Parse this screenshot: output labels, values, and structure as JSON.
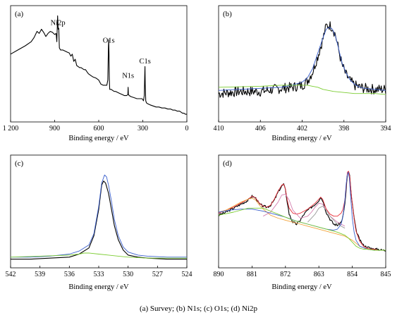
{
  "caption": "(a) Survey; (b) N1s; (c) O1s; (d) Ni2p",
  "colors": {
    "measured": "#000000",
    "envelope": "#3a5fcd",
    "background": "#7ccd32",
    "fit_red": "#e8303a",
    "fit_orange": "#f2a33a",
    "fit_pink": "#d47fb0",
    "fit_gray": "#9a9a9a"
  },
  "chart_data": [
    {
      "id": "a",
      "type": "line",
      "panel_label": "(a)",
      "xlabel": "Binding energy / eV",
      "ylabel": "",
      "xlim": [
        1200,
        0
      ],
      "ylim": [
        0,
        100
      ],
      "xticks": [
        1200,
        900,
        600,
        300,
        0
      ],
      "xtick_labels": [
        "1 200",
        "900",
        "600",
        "300",
        "0"
      ],
      "annotations": [
        {
          "text": "Ni2p",
          "x": 878,
          "y": 88
        },
        {
          "text": "O1s",
          "x": 532,
          "y": 71
        },
        {
          "text": "N1s",
          "x": 400,
          "y": 37
        },
        {
          "text": "C1s",
          "x": 285,
          "y": 51
        }
      ],
      "series": [
        {
          "color_key": "measured",
          "x": [
            1200,
            1150,
            1100,
            1060,
            1040,
            1020,
            1005,
            990,
            975,
            960,
            945,
            930,
            915,
            900,
            890,
            885,
            880,
            876,
            872,
            868,
            860,
            845,
            830,
            815,
            800,
            790,
            780,
            770,
            760,
            750,
            740,
            730,
            720,
            710,
            700,
            690,
            680,
            670,
            660,
            650,
            640,
            620,
            600,
            585,
            570,
            555,
            545,
            538,
            534,
            532,
            530,
            528,
            525,
            515,
            505,
            495,
            485,
            470,
            455,
            440,
            425,
            410,
            402,
            400,
            398,
            392,
            380,
            360,
            340,
            320,
            305,
            295,
            290,
            287,
            285,
            283,
            280,
            275,
            265,
            250,
            230,
            210,
            190,
            170,
            150,
            130,
            110,
            95,
            80,
            65,
            50,
            40,
            30,
            20,
            10,
            0
          ],
          "y": [
            60,
            64,
            68,
            72,
            76,
            82,
            80,
            84,
            81,
            77,
            80,
            82,
            81,
            79,
            80,
            72,
            97,
            84,
            85,
            66,
            64,
            64,
            63,
            62,
            61,
            58,
            60,
            53,
            55,
            49,
            48,
            47,
            47,
            46,
            45,
            45,
            43,
            41,
            40,
            39,
            38,
            37,
            35,
            31,
            30,
            30,
            30,
            35,
            68,
            74,
            60,
            37,
            26,
            26,
            25,
            24,
            24,
            23,
            22,
            21,
            20,
            20,
            21,
            28,
            21,
            20,
            19,
            18,
            17,
            17,
            17,
            15,
            20,
            38,
            48,
            30,
            15,
            13,
            12,
            11,
            10,
            9,
            9,
            8,
            8,
            7,
            7,
            6,
            6,
            5,
            5,
            4,
            3,
            3,
            2,
            2
          ]
        }
      ]
    },
    {
      "id": "b",
      "type": "line",
      "panel_label": "(b)",
      "xlabel": "Binding energy / eV",
      "ylabel": "",
      "xlim": [
        410,
        394
      ],
      "ylim": [
        0,
        100
      ],
      "xticks": [
        410,
        406,
        402,
        398,
        394
      ],
      "xtick_labels": [
        "410",
        "406",
        "402",
        "398",
        "394"
      ],
      "series": [
        {
          "color_key": "measured",
          "noise_seed": 7,
          "noise_amp": 5,
          "x": [
            410,
            408,
            406,
            404,
            403,
            402,
            401.5,
            401,
            400.5,
            400,
            399.7,
            399.4,
            399.1,
            398.8,
            398.5,
            398.2,
            397.8,
            397.4,
            397,
            396.5,
            396,
            395,
            394
          ],
          "y": [
            22,
            24,
            24,
            27,
            28,
            30,
            34,
            43,
            58,
            75,
            87,
            88,
            86,
            78,
            64,
            50,
            40,
            34,
            30,
            28,
            27,
            26,
            26
          ]
        },
        {
          "color_key": "envelope",
          "x": [
            410,
            408,
            406,
            404,
            403,
            402,
            401.5,
            401,
            400.5,
            400,
            399.7,
            399.4,
            399.1,
            398.8,
            398.5,
            398.2,
            397.8,
            397.4,
            397,
            396.5,
            396,
            395,
            394
          ],
          "y": [
            25,
            26,
            27,
            28,
            30,
            33,
            37,
            46,
            61,
            76,
            84,
            86,
            84,
            77,
            65,
            52,
            42,
            35,
            31,
            28,
            27,
            26,
            25
          ]
        },
        {
          "color_key": "background",
          "x": [
            410,
            406,
            404,
            402.5,
            402,
            401.5,
            401,
            400.5,
            400,
            399,
            398,
            397,
            396,
            395,
            394
          ],
          "y": [
            28,
            29,
            30,
            30,
            30,
            30,
            29,
            28,
            26,
            24,
            23,
            22,
            22,
            22,
            21
          ]
        }
      ]
    },
    {
      "id": "c",
      "type": "line",
      "panel_label": "(c)",
      "xlabel": "Binding energy / eV",
      "ylabel": "",
      "xlim": [
        542,
        524
      ],
      "ylim": [
        0,
        100
      ],
      "xticks": [
        542,
        539,
        536,
        533,
        530,
        527,
        524
      ],
      "xtick_labels": [
        "542",
        "539",
        "536",
        "533",
        "530",
        "527",
        "524"
      ],
      "series": [
        {
          "color_key": "measured",
          "x": [
            542,
            540,
            538,
            536,
            535,
            534,
            533.5,
            533,
            532.7,
            532.5,
            532.3,
            532,
            531.7,
            531.4,
            531,
            530.5,
            530,
            529,
            528,
            526,
            524
          ],
          "y": [
            3,
            3,
            4,
            5,
            8,
            14,
            26,
            52,
            76,
            80,
            78,
            68,
            52,
            36,
            22,
            12,
            7,
            5,
            4,
            3,
            3
          ]
        },
        {
          "color_key": "envelope",
          "x": [
            542,
            540,
            538,
            536,
            535,
            534,
            533.5,
            533,
            532.7,
            532.4,
            532.2,
            532,
            531.7,
            531.4,
            531,
            530.5,
            530,
            529,
            528,
            526,
            524
          ],
          "y": [
            5,
            5,
            6,
            8,
            11,
            17,
            28,
            55,
            78,
            86,
            84,
            76,
            60,
            42,
            26,
            15,
            10,
            7,
            6,
            5,
            5
          ]
        },
        {
          "color_key": "background",
          "x": [
            542,
            539,
            536,
            535,
            534.5,
            534,
            533,
            532,
            531,
            530,
            528,
            526,
            524
          ],
          "y": [
            5,
            6,
            7,
            8,
            9,
            9,
            8,
            7,
            6,
            5,
            4,
            4,
            4
          ]
        }
      ]
    },
    {
      "id": "d",
      "type": "line",
      "panel_label": "(d)",
      "xlabel": "Binding energy / eV",
      "ylabel": "",
      "xlim": [
        890,
        845
      ],
      "ylim": [
        0,
        100
      ],
      "xticks": [
        890,
        881,
        872,
        863,
        854,
        845
      ],
      "xtick_labels": [
        "890",
        "881",
        "872",
        "863",
        "854",
        "845"
      ],
      "series": [
        {
          "color_key": "measured",
          "noise_seed": 3,
          "noise_amp": 1.2,
          "x": [
            890,
            888,
            886,
            884,
            882,
            881,
            880,
            879,
            878,
            877,
            876,
            875,
            874,
            873,
            872.5,
            872,
            871.5,
            871,
            870,
            869,
            868,
            867,
            866,
            865,
            864,
            863,
            862.5,
            862,
            861.5,
            861,
            860,
            859,
            858,
            857,
            856.5,
            856,
            855.7,
            855.5,
            855.3,
            855,
            854.7,
            854.4,
            854,
            853.5,
            853,
            852,
            851,
            850,
            849,
            848,
            847,
            846,
            845
          ],
          "y": [
            47,
            50,
            54,
            58,
            62,
            66,
            64,
            58,
            56,
            55,
            57,
            62,
            70,
            76,
            78,
            72,
            60,
            48,
            40,
            38,
            42,
            48,
            52,
            55,
            58,
            62,
            65,
            62,
            56,
            50,
            43,
            38,
            37,
            40,
            46,
            58,
            70,
            80,
            88,
            90,
            86,
            72,
            58,
            44,
            32,
            22,
            17,
            15,
            14,
            13,
            13,
            12,
            12
          ]
        },
        {
          "color_key": "fit_red",
          "x": [
            890,
            888,
            886,
            884,
            882,
            881,
            880,
            879,
            878,
            877,
            876,
            875,
            874,
            873,
            872.5,
            872,
            871.5,
            871,
            870,
            869,
            868,
            867,
            866,
            865,
            864,
            863,
            862.5,
            862,
            861.5,
            861,
            860,
            859,
            858,
            857,
            856.5,
            856,
            855.7,
            855.5,
            855.3,
            855,
            854.7,
            854.4,
            854,
            853.5,
            853,
            852,
            851,
            850,
            849,
            848,
            847,
            846,
            845
          ],
          "y": [
            49,
            52,
            55,
            59,
            63,
            66,
            64,
            59,
            56,
            55,
            57,
            63,
            71,
            77,
            78,
            73,
            62,
            54,
            49,
            48,
            49,
            51,
            53,
            56,
            59,
            63,
            65,
            63,
            58,
            53,
            48,
            46,
            46,
            49,
            53,
            62,
            73,
            83,
            90,
            91,
            86,
            73,
            58,
            43,
            31,
            21,
            16,
            14,
            13,
            13,
            12,
            12,
            12
          ]
        },
        {
          "color_key": "fit_orange",
          "x": [
            890,
            888,
            886,
            884,
            882,
            881,
            880,
            879,
            878,
            877,
            876,
            874,
            872,
            870,
            868,
            866,
            864,
            862,
            860,
            858,
            856,
            854,
            852,
            850,
            848,
            846,
            845
          ],
          "y": [
            50,
            52,
            56,
            60,
            63,
            64,
            62,
            57,
            53,
            50,
            47,
            44,
            42,
            40,
            38,
            36,
            34,
            32,
            30,
            28,
            26,
            22,
            16,
            13,
            12,
            12,
            12
          ]
        },
        {
          "color_key": "fit_pink",
          "x": [
            878,
            876,
            874,
            873,
            872,
            871,
            870,
            868,
            866,
            865,
            864,
            863,
            862,
            861,
            860,
            858,
            856
          ],
          "y": [
            46,
            50,
            60,
            67,
            68,
            62,
            52,
            44,
            46,
            50,
            55,
            59,
            58,
            52,
            46,
            40,
            36
          ]
        },
        {
          "color_key": "fit_gray",
          "x": [
            866,
            864,
            863,
            862,
            861,
            860,
            858,
            856
          ],
          "y": [
            40,
            48,
            54,
            56,
            52,
            46,
            38,
            34
          ]
        },
        {
          "color_key": "envelope",
          "x": [
            890,
            887,
            884,
            881,
            878,
            875,
            872,
            869,
            866,
            863,
            861,
            859,
            858,
            857,
            856.5,
            856,
            855.7,
            855.4,
            855.1,
            854.8,
            854.5,
            854,
            853.5,
            853,
            852,
            850,
            848,
            846,
            845
          ],
          "y": [
            50,
            52,
            53,
            53,
            51,
            48,
            45,
            41,
            38,
            35,
            33,
            32,
            33,
            38,
            46,
            62,
            76,
            86,
            90,
            84,
            68,
            44,
            30,
            22,
            16,
            13,
            12,
            12,
            12
          ]
        },
        {
          "color_key": "background",
          "x": [
            890,
            886,
            882,
            878,
            874,
            870,
            866,
            862,
            858,
            856,
            855,
            854,
            853,
            852,
            851,
            850,
            848,
            846,
            845
          ],
          "y": [
            47,
            50,
            54,
            54,
            48,
            42,
            38,
            34,
            30,
            27,
            24,
            20,
            16,
            14,
            13,
            13,
            12,
            12,
            12
          ]
        }
      ]
    }
  ]
}
